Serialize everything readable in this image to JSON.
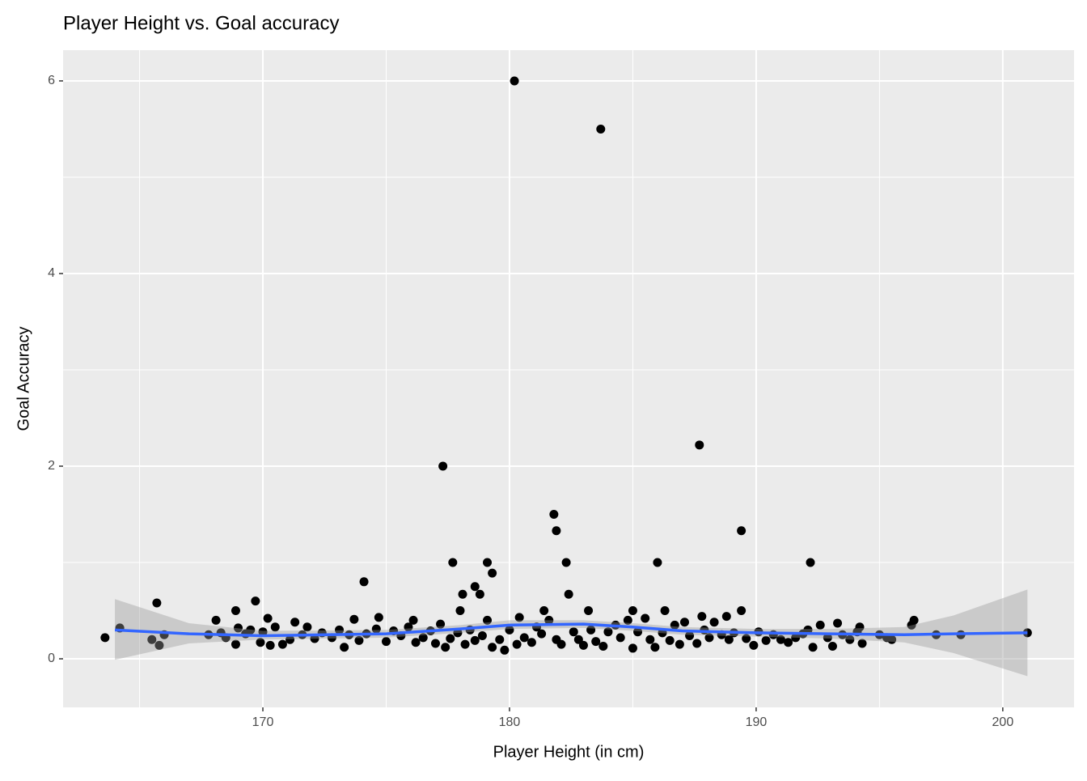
{
  "chart_data": {
    "type": "scatter",
    "title": "Player Height vs. Goal accuracy",
    "x_label": "Player Height (in cm)",
    "y_label": "Goal Accuracy",
    "xlim": [
      161.9,
      202.89
    ],
    "ylim": [
      -0.504,
      6.319
    ],
    "xticks": [
      170,
      180,
      190,
      200
    ],
    "yticks": [
      0,
      2,
      4,
      6
    ],
    "x_minor_grid": [
      165,
      175,
      185,
      195
    ],
    "y_minor_grid": [
      1,
      3,
      5
    ],
    "grid": true,
    "panel_color": "#ebebeb",
    "points": {
      "color": "#000000",
      "x": [
        180.2,
        183.7,
        187.7,
        177.3,
        181.8,
        181.9,
        189.4,
        177.7,
        179.1,
        179.3,
        182.3,
        186.0,
        192.2,
        174.1,
        178.6,
        178.1,
        178.8,
        182.4,
        165.7,
        169.7,
        168.9,
        178.0,
        181.4,
        183.2,
        185.0,
        186.3,
        189.4,
        187.8,
        188.8,
        163.6,
        164.2,
        165.5,
        165.8,
        166.0,
        201.0,
        198.3,
        197.3,
        196.4,
        196.3,
        195.3,
        167.8,
        168.1,
        168.3,
        168.5,
        168.9,
        169.0,
        169.3,
        169.5,
        169.9,
        170.0,
        170.2,
        170.3,
        170.5,
        170.8,
        171.1,
        171.3,
        171.6,
        171.8,
        172.1,
        172.4,
        172.8,
        173.1,
        173.3,
        173.5,
        173.7,
        173.9,
        174.2,
        174.6,
        174.7,
        175.0,
        175.3,
        175.6,
        175.9,
        176.1,
        176.2,
        176.5,
        176.8,
        177.0,
        177.2,
        177.4,
        177.6,
        177.9,
        178.2,
        178.4,
        178.6,
        178.9,
        179.1,
        179.3,
        179.6,
        179.8,
        180.0,
        180.3,
        180.4,
        180.6,
        180.9,
        181.1,
        181.3,
        181.6,
        181.9,
        182.1,
        182.6,
        182.8,
        183.0,
        183.3,
        183.5,
        183.8,
        184.0,
        184.3,
        184.5,
        184.8,
        185.0,
        185.2,
        185.5,
        185.7,
        185.9,
        186.2,
        186.5,
        186.7,
        186.9,
        187.1,
        187.3,
        187.6,
        187.9,
        188.1,
        188.3,
        188.6,
        188.9,
        189.1,
        189.6,
        189.9,
        190.1,
        190.4,
        190.7,
        191.0,
        191.3,
        191.6,
        191.9,
        192.1,
        192.3,
        192.6,
        192.9,
        193.1,
        193.3,
        193.5,
        193.8,
        194.1,
        194.2,
        194.3,
        195.0,
        195.5
      ],
      "y": [
        6.0,
        5.5,
        2.22,
        2.0,
        1.5,
        1.33,
        1.33,
        1.0,
        1.0,
        0.89,
        1.0,
        1.0,
        1.0,
        0.8,
        0.75,
        0.67,
        0.67,
        0.67,
        0.58,
        0.6,
        0.5,
        0.5,
        0.5,
        0.5,
        0.5,
        0.5,
        0.5,
        0.44,
        0.44,
        0.22,
        0.32,
        0.2,
        0.14,
        0.25,
        0.27,
        0.25,
        0.25,
        0.4,
        0.35,
        0.22,
        0.25,
        0.4,
        0.27,
        0.22,
        0.15,
        0.32,
        0.26,
        0.3,
        0.17,
        0.28,
        0.42,
        0.14,
        0.33,
        0.15,
        0.2,
        0.38,
        0.25,
        0.33,
        0.21,
        0.27,
        0.22,
        0.3,
        0.12,
        0.25,
        0.41,
        0.19,
        0.26,
        0.31,
        0.43,
        0.18,
        0.29,
        0.24,
        0.33,
        0.4,
        0.17,
        0.22,
        0.29,
        0.16,
        0.36,
        0.12,
        0.21,
        0.27,
        0.15,
        0.3,
        0.19,
        0.24,
        0.4,
        0.12,
        0.2,
        0.09,
        0.3,
        0.15,
        0.43,
        0.22,
        0.17,
        0.33,
        0.26,
        0.4,
        0.2,
        0.15,
        0.28,
        0.2,
        0.14,
        0.3,
        0.18,
        0.13,
        0.28,
        0.35,
        0.22,
        0.4,
        0.11,
        0.28,
        0.42,
        0.2,
        0.12,
        0.27,
        0.19,
        0.35,
        0.15,
        0.38,
        0.24,
        0.16,
        0.3,
        0.22,
        0.38,
        0.25,
        0.2,
        0.27,
        0.21,
        0.14,
        0.28,
        0.19,
        0.25,
        0.2,
        0.17,
        0.22,
        0.26,
        0.3,
        0.12,
        0.35,
        0.22,
        0.13,
        0.37,
        0.25,
        0.2,
        0.28,
        0.33,
        0.16,
        0.25,
        0.2
      ]
    },
    "smooth": {
      "color": "#3366ff",
      "band_color": "#999999",
      "x": [
        164,
        167,
        170,
        175,
        178,
        180,
        183,
        185,
        187,
        190,
        193,
        196,
        198,
        201
      ],
      "y": [
        0.3,
        0.26,
        0.24,
        0.26,
        0.31,
        0.35,
        0.36,
        0.33,
        0.29,
        0.27,
        0.26,
        0.25,
        0.26,
        0.27
      ],
      "ymin": [
        -0.01,
        0.16,
        0.2,
        0.22,
        0.27,
        0.31,
        0.32,
        0.29,
        0.25,
        0.23,
        0.21,
        0.17,
        0.06,
        -0.18
      ],
      "ymax": [
        0.62,
        0.37,
        0.29,
        0.3,
        0.35,
        0.4,
        0.4,
        0.37,
        0.33,
        0.31,
        0.31,
        0.33,
        0.45,
        0.72
      ]
    }
  }
}
